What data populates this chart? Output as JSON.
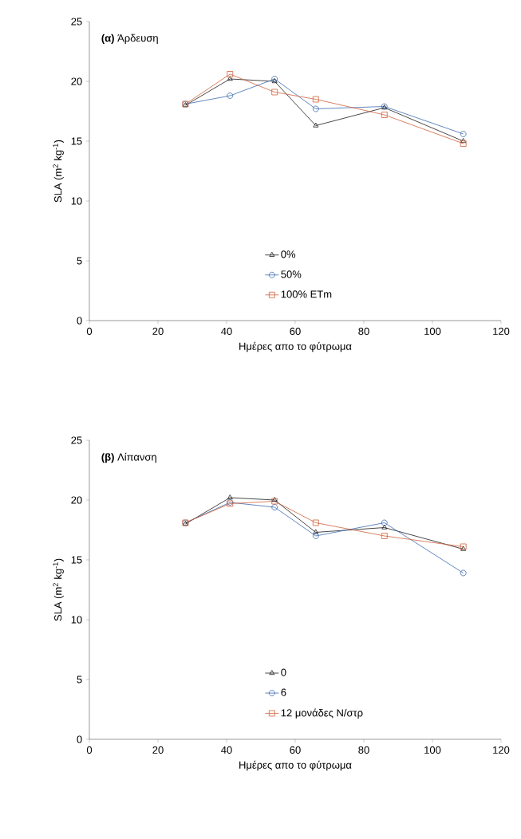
{
  "chart_data": [
    {
      "type": "line",
      "title": "**(α)** Άρδευση",
      "xlabel": "Ημέρες απο το φύτρωμα",
      "ylabel": "SLA (m$^{2}$ kg$^{-1}$)",
      "x": [
        28,
        41,
        54,
        66,
        86,
        109
      ],
      "xlim": [
        0,
        120
      ],
      "xticks": [
        0,
        20,
        40,
        60,
        80,
        100,
        120
      ],
      "ylim": [
        0,
        25
      ],
      "yticks": [
        0,
        5,
        10,
        15,
        20,
        25
      ],
      "legend": "bottom",
      "grid": false,
      "series": [
        {
          "name": "0%",
          "color": "#1a1a1a",
          "marker": "triangle",
          "values": [
            18.0,
            20.2,
            20.0,
            16.3,
            17.8,
            15.0
          ]
        },
        {
          "name": "50%",
          "color": "#3a6ab0",
          "marker": "circle",
          "values": [
            18.1,
            18.8,
            20.2,
            17.7,
            17.9,
            15.6
          ]
        },
        {
          "name": "100% ETm",
          "color": "#d0603a",
          "marker": "square",
          "values": [
            18.1,
            20.6,
            19.1,
            18.5,
            17.2,
            14.8
          ]
        }
      ]
    },
    {
      "type": "line",
      "title": "**(β)**   Λίπανση",
      "xlabel": "Ημέρες απο το φύτρωμα",
      "ylabel": "SLA (m$^{2}$ kg$^{-1}$)",
      "x": [
        28,
        41,
        54,
        66,
        86,
        109
      ],
      "xlim": [
        0,
        120
      ],
      "xticks": [
        0,
        20,
        40,
        60,
        80,
        100,
        120
      ],
      "ylim": [
        0,
        25
      ],
      "yticks": [
        0,
        5,
        10,
        15,
        20,
        25
      ],
      "legend": "bottom",
      "grid": false,
      "series": [
        {
          "name": "0",
          "color": "#1a1a1a",
          "marker": "triangle",
          "values": [
            18.0,
            20.2,
            20.0,
            17.3,
            17.7,
            15.9
          ]
        },
        {
          "name": "6",
          "color": "#3a6ab0",
          "marker": "circle",
          "values": [
            18.1,
            19.8,
            19.4,
            17.0,
            18.1,
            13.9
          ]
        },
        {
          "name": "12 μονάδες N/στρ",
          "color": "#d0603a",
          "marker": "square",
          "values": [
            18.1,
            19.7,
            19.9,
            18.1,
            17.0,
            16.1
          ]
        }
      ]
    }
  ]
}
